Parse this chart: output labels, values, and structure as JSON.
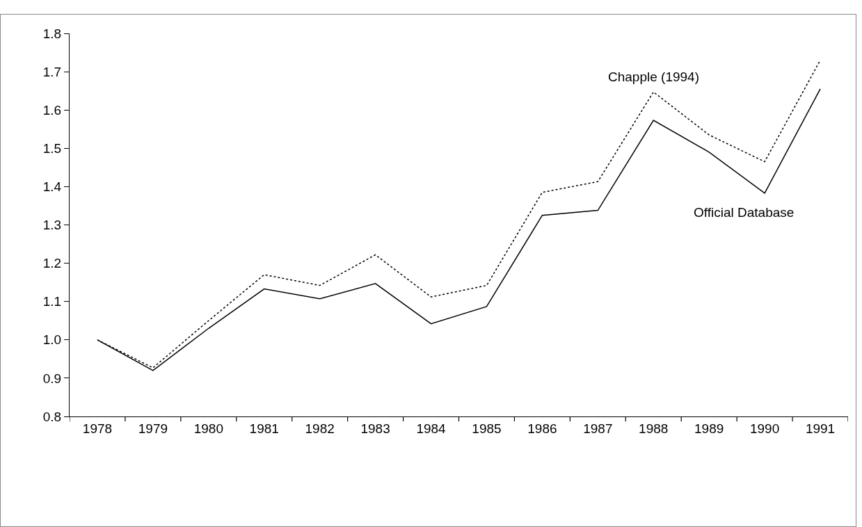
{
  "chart_data": {
    "type": "line",
    "categories": [
      "1978",
      "1979",
      "1980",
      "1981",
      "1982",
      "1983",
      "1984",
      "1985",
      "1986",
      "1987",
      "1988",
      "1989",
      "1990",
      "1991"
    ],
    "series": [
      {
        "name": "Chapple (1994)",
        "color": "#000000",
        "line_style": "dotted",
        "values": [
          1.0,
          0.927,
          1.05,
          1.17,
          1.142,
          1.222,
          1.112,
          1.142,
          1.385,
          1.413,
          1.647,
          1.535,
          1.465,
          1.73
        ]
      },
      {
        "name": "Official Database",
        "color": "#000000",
        "line_style": "solid",
        "values": [
          1.0,
          0.92,
          1.03,
          1.133,
          1.107,
          1.147,
          1.042,
          1.087,
          1.325,
          1.338,
          1.573,
          1.49,
          1.383,
          1.655
        ]
      }
    ],
    "ylim": [
      0.8,
      1.8
    ],
    "yticks": [
      0.8,
      0.9,
      {
        "value": 1,
        "label": "1.0"
      },
      1.1,
      1.2,
      1.3,
      1.4,
      1.5,
      1.6,
      1.7,
      1.8
    ],
    "grid": false,
    "legend": false,
    "marker": "none"
  }
}
